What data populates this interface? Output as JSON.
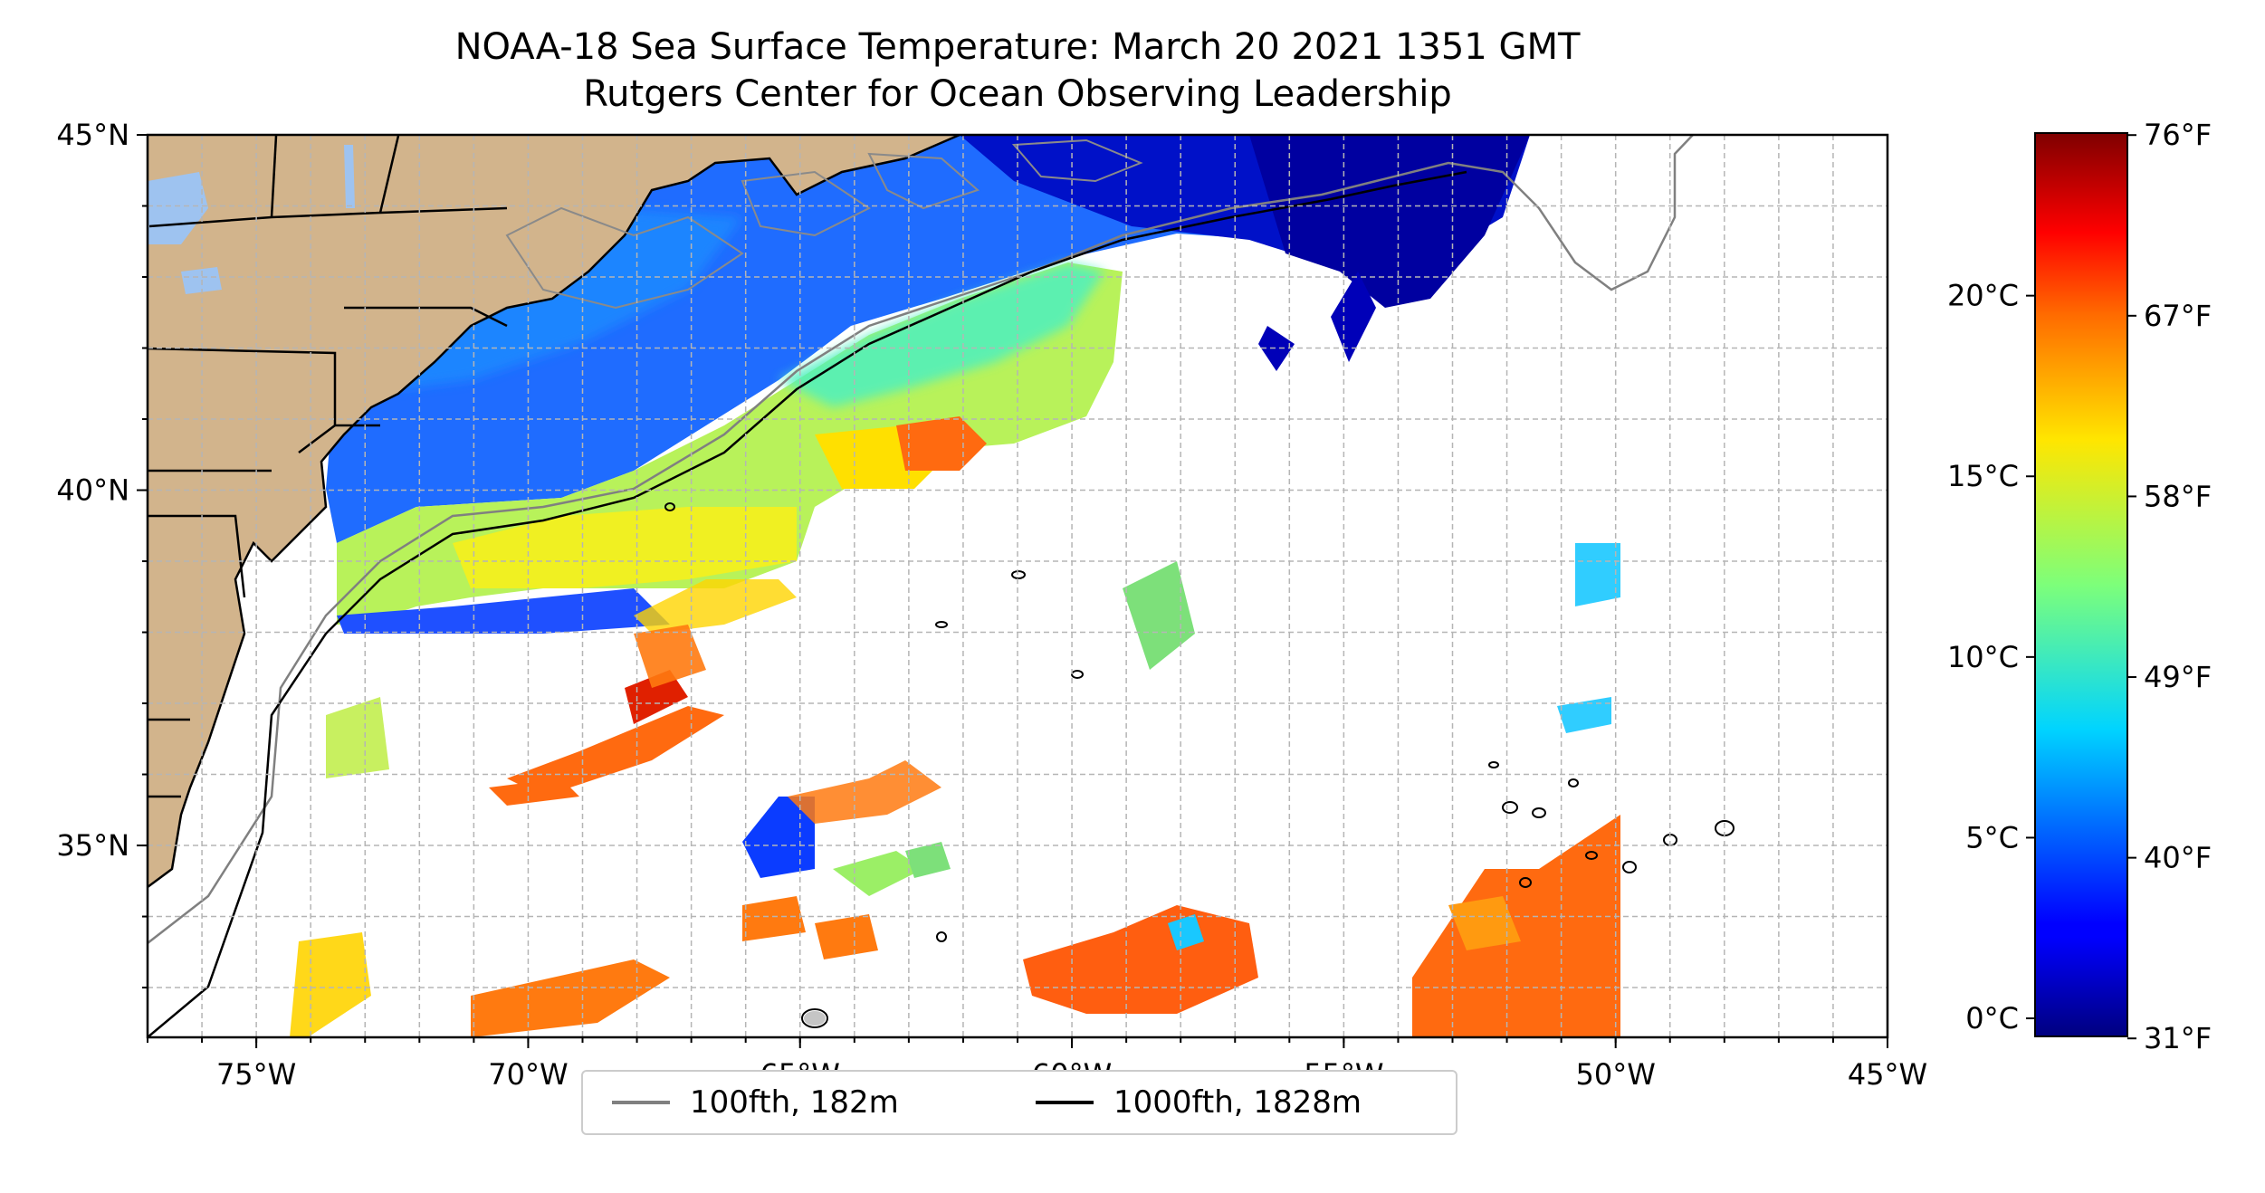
{
  "title": {
    "line1": "NOAA-18 Sea Surface Temperature: March 20 2021 1351 GMT",
    "line2": "Rutgers Center for Ocean Observing Leadership"
  },
  "map": {
    "extent": {
      "lon_min": -77,
      "lon_max": -45,
      "lat_min": 32.3,
      "lat_max": 45
    },
    "lon_ticks": [
      {
        "value": -75,
        "label": "75°W"
      },
      {
        "value": -70,
        "label": "70°W"
      },
      {
        "value": -65,
        "label": "65°W"
      },
      {
        "value": -60,
        "label": "60°W"
      },
      {
        "value": -55,
        "label": "55°W"
      },
      {
        "value": -50,
        "label": "50°W"
      },
      {
        "value": -45,
        "label": "45°W"
      }
    ],
    "lat_ticks": [
      {
        "value": 45,
        "label": "45°N"
      },
      {
        "value": 40,
        "label": "40°N"
      },
      {
        "value": 35,
        "label": "35°N"
      }
    ],
    "gridlines": true,
    "grid_step_deg": 1,
    "colors": {
      "land": "#d2b48c",
      "lakes": "#9ec3f0",
      "grid": "#b5b5b5",
      "contour_100fth": "#808080",
      "contour_1000fth": "#000000"
    }
  },
  "legend": {
    "placement": "bottom-center",
    "items": [
      {
        "label": "100fth, 182m",
        "color": "#808080"
      },
      {
        "label": "1000fth, 1828m",
        "color": "#000000"
      }
    ]
  },
  "colorbar": {
    "colormap": "jet",
    "range_c": [
      -0.5,
      24.5
    ],
    "celsius_ticks": [
      {
        "value": 0,
        "label": "0°C"
      },
      {
        "value": 5,
        "label": "5°C"
      },
      {
        "value": 10,
        "label": "10°C"
      },
      {
        "value": 15,
        "label": "15°C"
      },
      {
        "value": 20,
        "label": "20°C"
      }
    ],
    "fahrenheit_ticks": [
      {
        "value": 31,
        "label": "31°F"
      },
      {
        "value": 40,
        "label": "40°F"
      },
      {
        "value": 49,
        "label": "49°F"
      },
      {
        "value": 58,
        "label": "58°F"
      },
      {
        "value": 67,
        "label": "67°F"
      },
      {
        "value": 76,
        "label": "76°F"
      }
    ]
  }
}
